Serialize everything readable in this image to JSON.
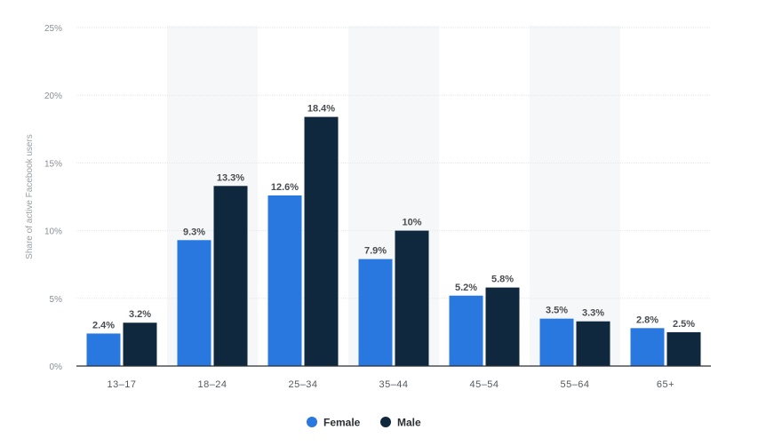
{
  "chart_data": {
    "type": "bar",
    "ylabel": "Share of active Facebook users",
    "xlabel": "",
    "ylim": [
      0,
      25
    ],
    "y_ticks": [
      0,
      5,
      10,
      15,
      20,
      25
    ],
    "y_tick_labels": [
      "0%",
      "5%",
      "10%",
      "15%",
      "20%",
      "25%"
    ],
    "categories": [
      "13–17",
      "18–24",
      "25–34",
      "35–44",
      "45–54",
      "55–64",
      "65+"
    ],
    "series": [
      {
        "name": "Female",
        "color": "#2878e0",
        "values": [
          2.4,
          9.3,
          12.6,
          7.9,
          5.2,
          3.5,
          2.8
        ],
        "labels": [
          "2.4%",
          "9.3%",
          "12.6%",
          "7.9%",
          "5.2%",
          "3.5%",
          "2.8%"
        ]
      },
      {
        "name": "Male",
        "color": "#10283d",
        "values": [
          3.2,
          13.3,
          18.4,
          10,
          5.8,
          3.3,
          2.5
        ],
        "labels": [
          "3.2%",
          "13.3%",
          "18.4%",
          "10%",
          "5.8%",
          "3.3%",
          "2.5%"
        ]
      }
    ],
    "grid": true,
    "alternating_band_color": "#f6f7f8",
    "gridline_color": "#e6e8ea",
    "axis_color": "#2b2e33",
    "legend_position": "bottom-center"
  }
}
